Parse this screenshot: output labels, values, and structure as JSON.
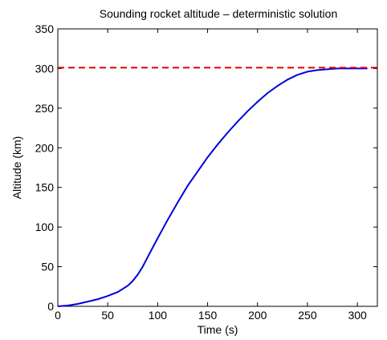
{
  "chart_data": {
    "type": "line",
    "title": "Sounding rocket altitude – deterministic solution",
    "xlabel": "Time (s)",
    "ylabel": "Altitude (km)",
    "xlim": [
      0,
      320
    ],
    "ylim": [
      0,
      350
    ],
    "xticks": [
      "0",
      "50",
      "100",
      "150",
      "200",
      "250",
      "300"
    ],
    "yticks": [
      "0",
      "50",
      "100",
      "150",
      "200",
      "250",
      "300",
      "350"
    ],
    "grid": false,
    "series": [
      {
        "color": "#0000dd",
        "style": "solid",
        "x": [
          0,
          10,
          20,
          30,
          40,
          50,
          60,
          70,
          75,
          80,
          85,
          90,
          100,
          110,
          120,
          130,
          140,
          150,
          160,
          170,
          180,
          190,
          200,
          210,
          220,
          230,
          240,
          250,
          260,
          270,
          280,
          290,
          300,
          305,
          310
        ],
        "y": [
          0,
          1,
          3,
          6,
          9,
          13,
          18,
          26,
          32,
          40,
          50,
          62,
          86,
          109,
          131,
          152,
          170,
          188,
          204,
          219,
          233,
          246,
          258,
          269,
          278,
          286,
          292,
          296,
          298,
          299,
          300,
          300,
          300,
          300,
          300
        ]
      },
      {
        "color": "#dd0000",
        "style": "dashed",
        "x": [
          0,
          320
        ],
        "y": [
          301,
          301
        ]
      }
    ]
  }
}
